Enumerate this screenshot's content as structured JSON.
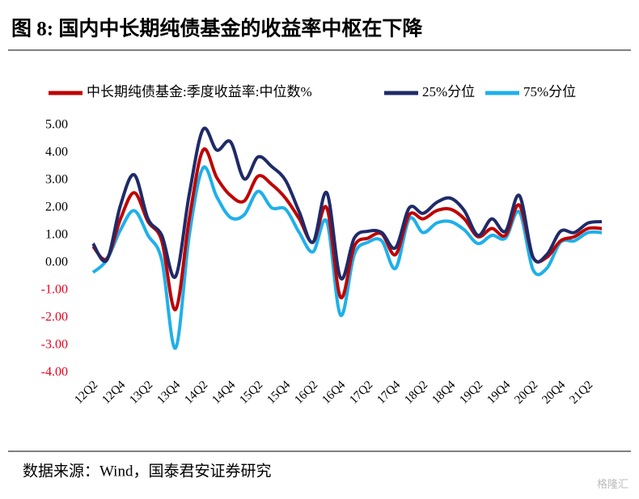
{
  "title": "图 8:  国内中长期纯债基金的收益率中枢在下降",
  "source": "数据来源：Wind，国泰君安证券研究",
  "watermark": "格隆汇",
  "chart_data": {
    "type": "line",
    "categories": [
      "12Q2",
      null,
      "12Q4",
      null,
      "13Q2",
      null,
      "13Q4",
      null,
      "14Q2",
      null,
      "14Q4",
      null,
      "15Q2",
      null,
      "15Q4",
      null,
      "16Q2",
      null,
      "16Q4",
      null,
      "17Q2",
      null,
      "17Q4",
      null,
      "18Q2",
      null,
      "18Q4",
      null,
      "19Q2",
      null,
      "19Q4",
      null,
      "20Q2",
      null,
      "20Q4",
      null,
      "21Q2",
      null
    ],
    "series": [
      {
        "name": "中长期纯债基金:季度收益率:中位数%",
        "color": "#c00000",
        "values": [
          0.6,
          0.15,
          1.6,
          2.55,
          1.5,
          0.8,
          -1.7,
          1.6,
          4.1,
          3.1,
          2.45,
          2.25,
          3.15,
          2.85,
          2.35,
          1.6,
          0.75,
          2.0,
          -1.25,
          0.6,
          0.9,
          1.05,
          0.3,
          1.75,
          1.6,
          1.9,
          1.95,
          1.6,
          0.95,
          1.25,
          1.0,
          2.1,
          0.2,
          0.2,
          0.8,
          0.95,
          1.25,
          1.25
        ]
      },
      {
        "name": "25%分位",
        "color": "#1f2a68",
        "values": [
          0.7,
          0.1,
          2.1,
          3.2,
          1.6,
          1.0,
          -0.5,
          2.5,
          4.85,
          4.1,
          4.4,
          3.05,
          3.85,
          3.5,
          3.0,
          1.85,
          0.75,
          2.55,
          -0.55,
          0.9,
          1.15,
          1.1,
          0.55,
          2.0,
          1.8,
          2.2,
          2.35,
          1.9,
          1.0,
          1.6,
          1.15,
          2.45,
          0.2,
          0.3,
          1.15,
          1.1,
          1.45,
          1.5
        ]
      },
      {
        "name": "75%分位",
        "color": "#1eb0ea",
        "values": [
          -0.35,
          0.1,
          1.2,
          1.9,
          1.0,
          0.1,
          -3.1,
          1.0,
          3.45,
          2.4,
          1.65,
          1.75,
          2.6,
          2.0,
          1.95,
          1.1,
          0.4,
          1.5,
          -1.9,
          0.3,
          0.75,
          0.8,
          -0.2,
          1.6,
          1.1,
          1.45,
          1.5,
          1.2,
          0.7,
          1.0,
          0.9,
          1.85,
          -0.25,
          -0.2,
          0.75,
          0.8,
          1.1,
          1.1
        ]
      }
    ],
    "ylim": [
      -4,
      5
    ],
    "yticks": [
      {
        "value": -4,
        "label": "-4.00"
      },
      {
        "value": -3,
        "label": "-3.00"
      },
      {
        "value": -2,
        "label": "-2.00"
      },
      {
        "value": -1,
        "label": "-1.00"
      },
      {
        "value": 0,
        "label": "0.00"
      },
      {
        "value": 1,
        "label": "1.00"
      },
      {
        "value": 2,
        "label": "2.00"
      },
      {
        "value": 3,
        "label": "3.00"
      },
      {
        "value": 4,
        "label": "4.00"
      },
      {
        "value": 5,
        "label": "5.00"
      }
    ],
    "negative_tick_color": "#e8001c",
    "grid": false,
    "legend": "top"
  }
}
